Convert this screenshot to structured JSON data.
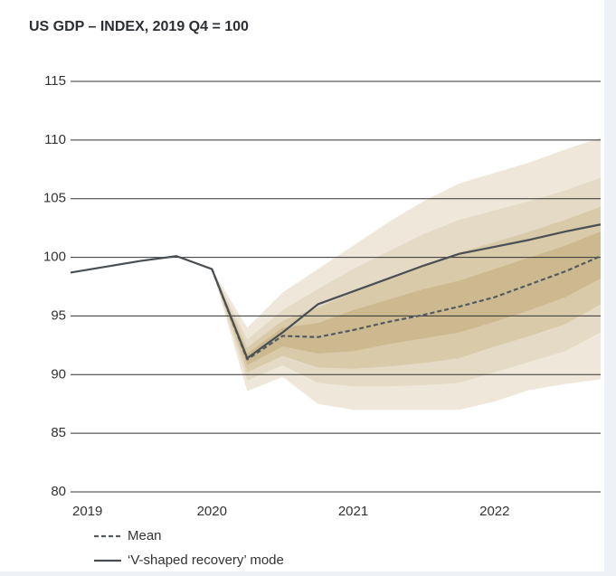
{
  "chart_data": {
    "type": "fan",
    "title": "US GDP – INDEX, 2019 Q4 = 100",
    "x": [
      2019,
      2019.25,
      2019.5,
      2019.75,
      2020,
      2020.25,
      2020.5,
      2020.75,
      2021,
      2021.25,
      2021.5,
      2021.75,
      2022,
      2022.25,
      2022.5,
      2022.75
    ],
    "xlim": [
      2019,
      2022.75
    ],
    "xticks": [
      2019,
      2020,
      2021,
      2022
    ],
    "ylim": [
      80,
      115
    ],
    "yticks": [
      80,
      85,
      90,
      95,
      100,
      105,
      110,
      115
    ],
    "grid": true,
    "bands": [
      {
        "color": "#efe8da",
        "upper": [
          null,
          null,
          null,
          null,
          99.0,
          94.0,
          97.0,
          99.0,
          101.0,
          103.0,
          104.8,
          106.3,
          107.2,
          108.1,
          109.2,
          110.2
        ],
        "lower": [
          null,
          null,
          null,
          null,
          99.0,
          88.6,
          89.8,
          87.5,
          87.0,
          87.0,
          87.0,
          87.0,
          87.7,
          88.7,
          89.2,
          89.6
        ]
      },
      {
        "color": "#e5dac5",
        "upper": [
          null,
          null,
          null,
          null,
          99.0,
          93.0,
          95.5,
          97.3,
          99.0,
          100.5,
          102.0,
          103.2,
          104.0,
          104.8,
          105.7,
          106.8
        ],
        "lower": [
          null,
          null,
          null,
          null,
          99.0,
          89.5,
          90.8,
          89.3,
          89.0,
          89.0,
          89.1,
          89.3,
          90.2,
          91.1,
          92.0,
          93.6
        ]
      },
      {
        "color": "#d9caa9",
        "upper": [
          null,
          null,
          null,
          null,
          99.0,
          92.3,
          94.6,
          95.7,
          97.0,
          98.2,
          99.4,
          100.4,
          101.3,
          102.2,
          103.2,
          104.3
        ],
        "lower": [
          null,
          null,
          null,
          null,
          99.0,
          90.2,
          91.6,
          90.6,
          90.5,
          90.7,
          91.0,
          91.4,
          92.4,
          93.3,
          94.3,
          96.0
        ]
      },
      {
        "color": "#cdb98f",
        "upper": [
          null,
          null,
          null,
          null,
          99.0,
          91.8,
          94.0,
          94.4,
          95.5,
          96.4,
          97.3,
          98.0,
          99.0,
          100.0,
          101.0,
          102.2
        ],
        "lower": [
          null,
          null,
          null,
          null,
          99.0,
          90.8,
          92.4,
          91.8,
          92.0,
          92.6,
          93.1,
          93.6,
          94.5,
          95.5,
          96.6,
          98.2
        ]
      }
    ],
    "series": [
      {
        "name": "Mean",
        "color": "#555a5f",
        "dash": true,
        "values": [
          null,
          null,
          null,
          null,
          99.0,
          91.3,
          93.3,
          93.2,
          93.8,
          94.5,
          95.1,
          95.8,
          96.6,
          97.7,
          98.8,
          100.1
        ]
      },
      {
        "name": "‘V-shaped recovery’ mode",
        "color": "#4a4f54",
        "dash": false,
        "values": [
          98.7,
          99.2,
          99.7,
          100.1,
          99.0,
          91.4,
          93.6,
          96.0,
          97.1,
          98.2,
          99.3,
          100.3,
          100.9,
          101.5,
          102.2,
          102.8
        ]
      }
    ]
  }
}
